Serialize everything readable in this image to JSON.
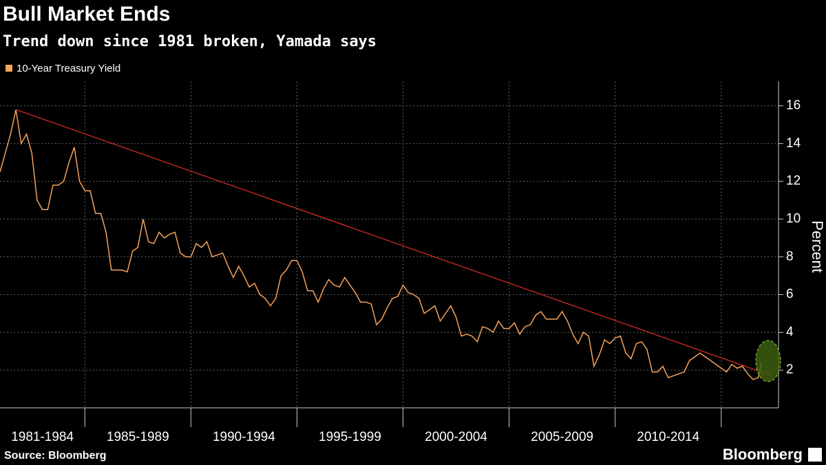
{
  "chart_data": {
    "type": "line",
    "title": "Bull Market Ends",
    "subtitle": "Trend down since 1981 broken, Yamada says",
    "y_label": "Percent",
    "source": "Source: Bloomberg",
    "logo": "Bloomberg",
    "x": [
      1981,
      1981.25,
      1981.5,
      1981.75,
      1982,
      1982.25,
      1982.5,
      1982.75,
      1983,
      1983.25,
      1983.5,
      1983.75,
      1984,
      1984.25,
      1984.5,
      1984.75,
      1985,
      1985.25,
      1985.5,
      1985.75,
      1986,
      1986.25,
      1986.5,
      1986.75,
      1987,
      1987.25,
      1987.5,
      1987.75,
      1988,
      1988.25,
      1988.5,
      1988.75,
      1989,
      1989.25,
      1989.5,
      1989.75,
      1990,
      1990.25,
      1990.5,
      1990.75,
      1991,
      1991.25,
      1991.5,
      1991.75,
      1992,
      1992.25,
      1992.5,
      1992.75,
      1993,
      1993.25,
      1993.5,
      1993.75,
      1994,
      1994.25,
      1994.5,
      1994.75,
      1995,
      1995.25,
      1995.5,
      1995.75,
      1996,
      1996.25,
      1996.5,
      1996.75,
      1997,
      1997.25,
      1997.5,
      1997.75,
      1998,
      1998.25,
      1998.5,
      1998.75,
      1999,
      1999.25,
      1999.5,
      1999.75,
      2000,
      2000.25,
      2000.5,
      2000.75,
      2001,
      2001.25,
      2001.5,
      2001.75,
      2002,
      2002.25,
      2002.5,
      2002.75,
      2003,
      2003.25,
      2003.5,
      2003.75,
      2004,
      2004.25,
      2004.5,
      2004.75,
      2005,
      2005.25,
      2005.5,
      2005.75,
      2006,
      2006.25,
      2006.5,
      2006.75,
      2007,
      2007.25,
      2007.5,
      2007.75,
      2008,
      2008.25,
      2008.5,
      2008.75,
      2009,
      2009.25,
      2009.5,
      2009.75,
      2010,
      2010.25,
      2010.5,
      2010.75,
      2011,
      2011.25,
      2011.5,
      2011.75,
      2012,
      2012.25,
      2012.5,
      2012.75,
      2013,
      2013.25,
      2013.5,
      2013.75,
      2014,
      2014.25,
      2014.5,
      2014.75,
      2015,
      2015.25,
      2015.5,
      2015.75,
      2016,
      2016.25,
      2016.5,
      2016.75,
      2016.9
    ],
    "series": [
      {
        "name": "10-Year Treasury Yield",
        "color": "#f7a35c",
        "values": [
          12.5,
          13.5,
          14.5,
          15.8,
          14.0,
          14.5,
          13.5,
          11.0,
          10.5,
          10.5,
          11.8,
          11.8,
          12.0,
          13.0,
          13.8,
          12.0,
          11.5,
          11.5,
          10.3,
          10.3,
          9.3,
          7.3,
          7.3,
          7.3,
          7.2,
          8.3,
          8.5,
          10.0,
          8.8,
          8.7,
          9.3,
          9.0,
          9.2,
          9.3,
          8.2,
          8.0,
          8.0,
          8.7,
          8.5,
          8.8,
          8.0,
          8.1,
          8.2,
          7.5,
          6.9,
          7.5,
          7.0,
          6.4,
          6.6,
          6.0,
          5.8,
          5.4,
          5.8,
          7.0,
          7.3,
          7.8,
          7.8,
          7.2,
          6.2,
          6.2,
          5.6,
          6.3,
          6.8,
          6.5,
          6.4,
          6.9,
          6.5,
          6.1,
          5.6,
          5.6,
          5.5,
          4.4,
          4.7,
          5.3,
          5.8,
          5.9,
          6.5,
          6.1,
          6.0,
          5.8,
          5.0,
          5.2,
          5.4,
          4.6,
          5.0,
          5.4,
          4.8,
          3.8,
          3.9,
          3.8,
          3.5,
          4.3,
          4.2,
          4.0,
          4.6,
          4.2,
          4.2,
          4.5,
          3.9,
          4.3,
          4.4,
          4.9,
          5.1,
          4.7,
          4.7,
          4.7,
          5.1,
          4.6,
          3.9,
          3.4,
          4.0,
          3.8,
          2.2,
          2.8,
          3.6,
          3.4,
          3.7,
          3.8,
          2.9,
          2.6,
          3.4,
          3.5,
          3.1,
          1.9,
          1.9,
          2.2,
          1.6,
          1.7,
          1.8,
          1.9,
          2.5,
          2.7,
          2.9,
          2.7,
          2.5,
          2.3,
          2.1,
          1.9,
          2.3,
          2.1,
          2.2,
          1.8,
          1.5,
          1.6,
          2.4
        ]
      }
    ],
    "trend_line": {
      "color": "#e0302a",
      "x": [
        1981.75,
        2017.4
      ],
      "values": [
        15.8,
        1.7
      ]
    },
    "xlim": [
      1981,
      2017.7
    ],
    "xticks": [
      1985,
      1990,
      1995,
      2000,
      2005,
      2010,
      2015
    ],
    "x_period_labels": [
      "1981-1984",
      "1985-1989",
      "1990-1994",
      "1995-1999",
      "2000-2004",
      "2005-2009",
      "2010-2014"
    ],
    "ylim": [
      0,
      17.3
    ],
    "yticks": [
      2,
      4,
      6,
      8,
      10,
      12,
      14,
      16
    ],
    "grid": true
  }
}
